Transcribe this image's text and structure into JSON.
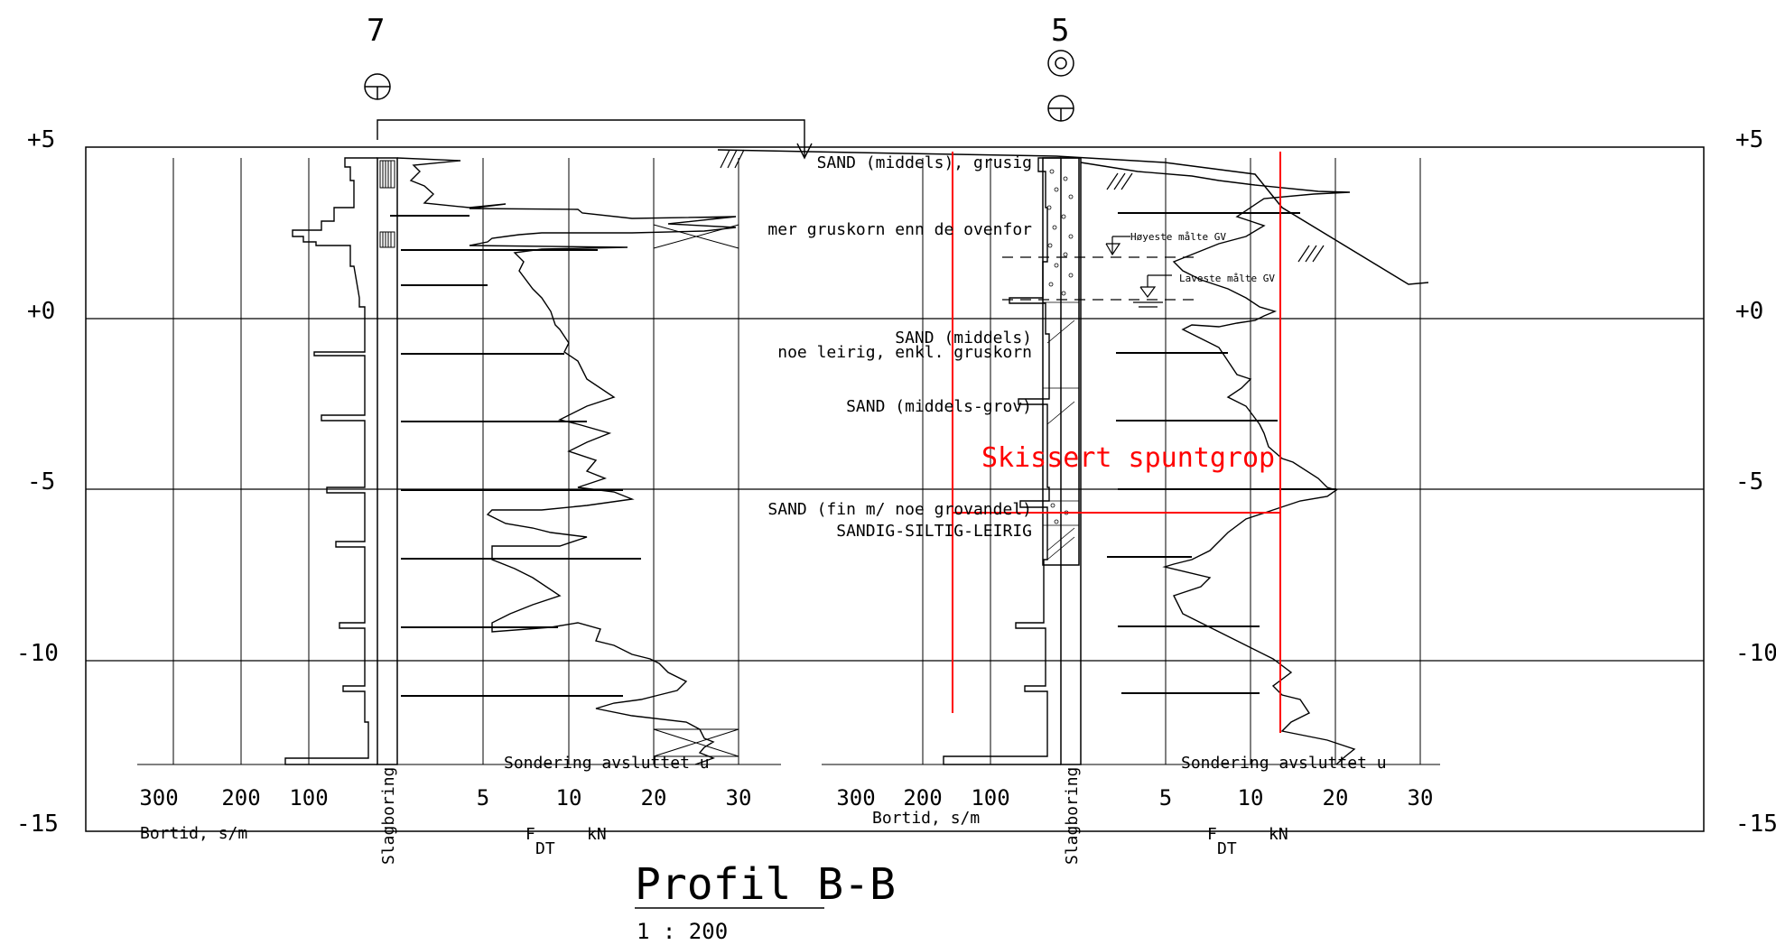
{
  "title": "Profil B-B",
  "scale": "1 : 200",
  "elevation_labels": [
    "+5",
    "+0",
    "-5",
    "-10",
    "-15"
  ],
  "boreholes": [
    {
      "id": "7",
      "bortid_ticks": [
        "300",
        "200",
        "100"
      ],
      "bortid_label": "Bortid, s/m",
      "slag_label": "Slagboring",
      "force_ticks": [
        "5",
        "10",
        "20",
        "30"
      ],
      "force_label_main": "F",
      "force_label_sub": "DT",
      "force_label_unit": "kN",
      "end_text": "Sondering avsluttet u"
    },
    {
      "id": "5",
      "bortid_ticks": [
        "300",
        "200",
        "100"
      ],
      "bortid_label": "Bortid, s/m",
      "slag_label": "Slagboring",
      "force_ticks": [
        "5",
        "10",
        "20",
        "30"
      ],
      "force_label_main": "F",
      "force_label_sub": "DT",
      "force_label_unit": "kN",
      "end_text": "Sondering avsluttet u"
    }
  ],
  "soil_layers": [
    "SAND (middels), grusig",
    "mer gruskorn enn de ovenfor",
    "SAND (middels)",
    "noe leirig, enkl. gruskorn",
    "SAND (middels-grov)",
    "SAND (fin m/ noe grovandel)",
    "SANDIG-SILTIG-LEIRIG"
  ],
  "groundwater": {
    "highest": "Høyeste målte GV",
    "lowest": "Laveste målte GV"
  },
  "sketch_label": "Skissert spuntgrop",
  "colors": {
    "line": "#000000",
    "sketch": "#ff0000"
  }
}
